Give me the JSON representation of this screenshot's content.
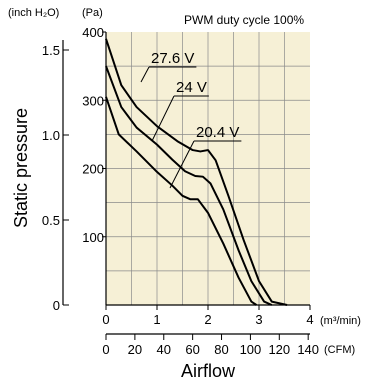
{
  "chart_data": {
    "type": "line",
    "title": "PWM duty cycle 100%",
    "xlabel": "Airflow",
    "ylabel": "Static pressure",
    "x_primary": {
      "unit": "(m³/min)",
      "range": [
        0,
        4
      ],
      "ticks": [
        0,
        1,
        2,
        3,
        4
      ]
    },
    "x_secondary": {
      "unit": "(CFM)",
      "range": [
        0,
        141.26
      ],
      "ticks": [
        0,
        20,
        40,
        60,
        80,
        100,
        120,
        140
      ]
    },
    "y_primary": {
      "unit": "(Pa)",
      "range": [
        0,
        400
      ],
      "ticks": [
        100,
        200,
        300,
        400
      ]
    },
    "y_secondary": {
      "unit": "(inch H₂O)",
      "ticks": [
        0,
        0.5,
        1.0,
        1.5
      ]
    },
    "grid": true,
    "background_color": "#f6f0d6",
    "grid_color": "#8a8a8a",
    "line_color": "#000000",
    "series": [
      {
        "name": "27.6 V",
        "x": [
          0,
          0.3,
          0.6,
          1.0,
          1.4,
          1.7,
          1.85,
          2.0,
          2.15,
          2.4,
          2.7,
          3.0,
          3.25,
          3.55
        ],
        "y": [
          390,
          322,
          290,
          262,
          240,
          227,
          225,
          227,
          212,
          160,
          95,
          35,
          5,
          0
        ]
      },
      {
        "name": "24 V",
        "x": [
          0,
          0.3,
          0.6,
          1.0,
          1.3,
          1.55,
          1.75,
          1.9,
          2.05,
          2.3,
          2.6,
          2.85,
          3.1,
          3.25
        ],
        "y": [
          350,
          290,
          260,
          235,
          213,
          196,
          189,
          188,
          178,
          140,
          80,
          35,
          5,
          0
        ]
      },
      {
        "name": "20.4 V",
        "x": [
          0,
          0.25,
          0.6,
          1.0,
          1.3,
          1.5,
          1.65,
          1.8,
          2.0,
          2.3,
          2.6,
          2.85,
          2.95
        ],
        "y": [
          305,
          250,
          225,
          195,
          175,
          160,
          155,
          155,
          135,
          90,
          40,
          5,
          0
        ]
      }
    ]
  }
}
